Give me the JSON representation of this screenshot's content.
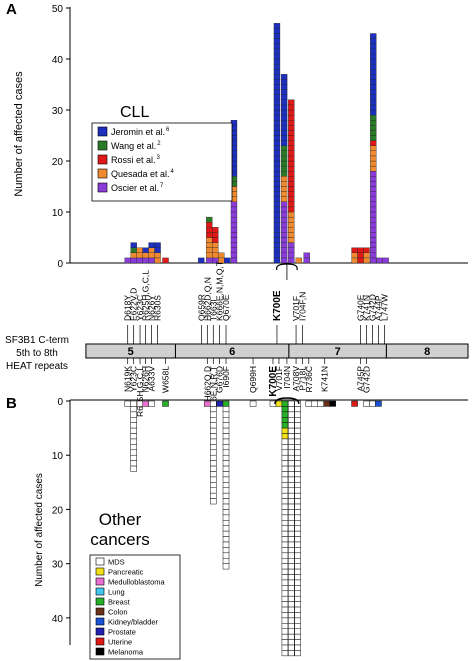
{
  "panel_a": {
    "letter": "A",
    "ylabel": "Number of affected cases",
    "yticks": [
      "0",
      "10",
      "20",
      "30",
      "40",
      "50"
    ],
    "group_label": "CLL",
    "legend": [
      {
        "name": "Jeromin et al.",
        "sup": "6",
        "color": "#1c2fbf"
      },
      {
        "name": "Wang et al.",
        "sup": "2",
        "color": "#2a7a2a"
      },
      {
        "name": "Rossi et al.",
        "sup": "3",
        "color": "#e01818"
      },
      {
        "name": "Quesada et al.",
        "sup": "4",
        "color": "#f08a30"
      },
      {
        "name": "Oscier et al.",
        "sup": "7",
        "color": "#8a3cd8"
      }
    ]
  },
  "protein": {
    "title_line1": "SF3B1 C-term",
    "title_line2": "5th to 8th",
    "title_line3": "HEAT repeats",
    "repeats": [
      "5",
      "6",
      "7",
      "8"
    ],
    "mutations_above": [
      "D618Y",
      "E622V,D",
      "Y623C",
      "R625H,G,C,L",
      "N626Y",
      "R630S",
      "Q659R",
      "H662D,Q,N",
      "T663I",
      "K666E,N,M,Q,T",
      "Q670E",
      "K700E",
      "V701F",
      "I704F,N",
      "G740E",
      "K741N",
      "G742D",
      "A744P",
      "L747W"
    ],
    "mutations_below": [
      "N619K",
      "Y623C",
      "R625H,G,C,L",
      "N626H",
      "A633V",
      "W658L",
      "H662Q,D",
      "K666E,N,R,T",
      "G676D",
      "I690F",
      "Q699H",
      "K700E",
      "V701F",
      "I704N",
      "A708V",
      "P718L",
      "R736C",
      "K741N",
      "A745P",
      "G742D"
    ]
  },
  "panel_b": {
    "letter": "B",
    "ylabel": "Number of affected cases",
    "yticks": [
      "0",
      "10",
      "20",
      "30",
      "40"
    ],
    "group_label_line1": "Other",
    "group_label_line2": "cancers",
    "legend": [
      {
        "name": "MDS",
        "color": "#ffffff"
      },
      {
        "name": "Pancreatic",
        "color": "#f2e018"
      },
      {
        "name": "Medulloblastoma",
        "color": "#e870d0"
      },
      {
        "name": "Lung",
        "color": "#40c8f0"
      },
      {
        "name": "Breast",
        "color": "#28b028"
      },
      {
        "name": "Colon",
        "color": "#6a3018"
      },
      {
        "name": "Kidney/bladder",
        "color": "#1850d8"
      },
      {
        "name": "Prostate",
        "color": "#2020b0"
      },
      {
        "name": "Uterine",
        "color": "#e01818"
      },
      {
        "name": "Melanoma",
        "color": "#000000"
      }
    ]
  },
  "chart_data": [
    {
      "type": "bar",
      "stacked": true,
      "panel": "A",
      "title": "CLL",
      "xlabel": "",
      "ylabel": "Number of affected cases",
      "ylim": [
        0,
        50
      ],
      "series_order": [
        "Oscier et al.",
        "Quesada et al.",
        "Rossi et al.",
        "Wang et al.",
        "Jeromin et al."
      ],
      "bars": [
        {
          "pos": 0.145,
          "values": {
            "Oscier et al.": 1
          }
        },
        {
          "pos": 0.16,
          "values": {
            "Oscier et al.": 1,
            "Quesada et al.": 1,
            "Wang et al.": 1,
            "Jeromin et al.": 1
          }
        },
        {
          "pos": 0.175,
          "values": {
            "Oscier et al.": 1,
            "Quesada et al.": 2
          }
        },
        {
          "pos": 0.19,
          "values": {
            "Oscier et al.": 1,
            "Quesada et al.": 1,
            "Jeromin et al.": 1
          }
        },
        {
          "pos": 0.205,
          "values": {
            "Oscier et al.": 1,
            "Quesada et al.": 2,
            "Jeromin et al.": 1
          }
        },
        {
          "pos": 0.22,
          "values": {
            "Quesada et al.": 2,
            "Jeromin et al.": 2
          }
        },
        {
          "pos": 0.24,
          "values": {
            "Rossi et al.": 1
          }
        },
        {
          "pos": 0.33,
          "values": {
            "Jeromin et al.": 1
          }
        },
        {
          "pos": 0.35,
          "values": {
            "Oscier et al.": 1,
            "Quesada et al.": 4,
            "Wang et al.": 1,
            "Rossi et al.": 3
          }
        },
        {
          "pos": 0.365,
          "values": {
            "Oscier et al.": 1,
            "Quesada et al.": 3,
            "Rossi et al.": 3
          }
        },
        {
          "pos": 0.38,
          "values": {
            "Quesada et al.": 2
          }
        },
        {
          "pos": 0.395,
          "values": {
            "Jeromin et al.": 1
          }
        },
        {
          "pos": 0.412,
          "values": {
            "Oscier et al.": 12,
            "Quesada et al.": 3,
            "Wang et al.": 2,
            "Jeromin et al.": 11
          }
        },
        {
          "pos": 0.52,
          "values": {
            "Jeromin et al.": 47
          }
        },
        {
          "pos": 0.538,
          "values": {
            "Oscier et al.": 12,
            "Quesada et al.": 5,
            "Wang et al.": 6,
            "Jeromin et al.": 14
          }
        },
        {
          "pos": 0.556,
          "values": {
            "Oscier et al.": 4,
            "Quesada et al.": 6,
            "Rossi et al.": 22
          }
        },
        {
          "pos": 0.575,
          "values": {
            "Quesada et al.": 1
          }
        },
        {
          "pos": 0.595,
          "values": {
            "Oscier et al.": 2
          }
        },
        {
          "pos": 0.715,
          "values": {
            "Quesada et al.": 2,
            "Rossi et al.": 1
          }
        },
        {
          "pos": 0.73,
          "values": {
            "Rossi et al.": 3
          }
        },
        {
          "pos": 0.745,
          "values": {
            "Quesada et al.": 2,
            "Rossi et al.": 1
          }
        },
        {
          "pos": 0.762,
          "values": {
            "Oscier et al.": 18,
            "Quesada et al.": 5,
            "Wang et al.": 5,
            "Rossi et al.": 1,
            "Jeromin et al.": 16
          }
        },
        {
          "pos": 0.778,
          "values": {
            "Oscier et al.": 1
          }
        },
        {
          "pos": 0.793,
          "values": {
            "Oscier et al.": 1
          }
        }
      ]
    },
    {
      "type": "bar",
      "stacked": true,
      "orientation": "downward",
      "panel": "B",
      "title": "Other cancers",
      "xlabel": "",
      "ylabel": "Number of affected cases",
      "ylim": [
        0,
        45
      ],
      "columns": [
        {
          "pos": 0.145,
          "cells": [
            "MDS"
          ]
        },
        {
          "pos": 0.16,
          "cells": [
            "MDS",
            "MDS",
            "MDS",
            "MDS",
            "MDS",
            "MDS",
            "MDS",
            "MDS",
            "MDS",
            "MDS",
            "MDS",
            "MDS",
            "MDS"
          ]
        },
        {
          "pos": 0.176,
          "cells": [
            "MDS"
          ]
        },
        {
          "pos": 0.19,
          "cells": [
            "Medulloblastoma"
          ]
        },
        {
          "pos": 0.205,
          "cells": [
            "MDS"
          ]
        },
        {
          "pos": 0.24,
          "cells": [
            "Breast"
          ]
        },
        {
          "pos": 0.345,
          "cells": [
            "Medulloblastoma"
          ]
        },
        {
          "pos": 0.36,
          "cells": [
            "MDS",
            "MDS",
            "MDS",
            "MDS",
            "MDS",
            "MDS",
            "MDS",
            "MDS",
            "MDS",
            "MDS",
            "MDS",
            "MDS",
            "MDS",
            "MDS",
            "MDS",
            "MDS",
            "MDS",
            "MDS",
            "MDS"
          ]
        },
        {
          "pos": 0.376,
          "cells": [
            "Prostate"
          ]
        },
        {
          "pos": 0.392,
          "cells": [
            "Breast",
            "MDS",
            "MDS",
            "MDS",
            "MDS",
            "MDS",
            "MDS",
            "MDS",
            "MDS",
            "MDS",
            "MDS",
            "MDS",
            "MDS",
            "MDS",
            "MDS",
            "MDS",
            "MDS",
            "MDS",
            "MDS",
            "MDS",
            "MDS",
            "MDS",
            "MDS",
            "MDS",
            "MDS",
            "MDS",
            "MDS",
            "MDS",
            "MDS",
            "MDS",
            "MDS"
          ]
        },
        {
          "pos": 0.46,
          "cells": [
            "MDS"
          ]
        },
        {
          "pos": 0.51,
          "cells": [
            "MDS"
          ]
        },
        {
          "pos": 0.525,
          "cells": [
            "Pancreatic"
          ]
        },
        {
          "pos": 0.54,
          "cells": [
            "Breast",
            "Breast",
            "Breast",
            "Breast",
            "Breast",
            "Pancreatic",
            "Pancreatic",
            "MDS",
            "MDS",
            "MDS",
            "MDS",
            "MDS",
            "MDS",
            "MDS",
            "MDS",
            "MDS",
            "MDS",
            "MDS",
            "MDS",
            "MDS",
            "MDS",
            "MDS",
            "MDS",
            "MDS",
            "MDS",
            "MDS",
            "MDS",
            "MDS",
            "MDS",
            "MDS",
            "MDS",
            "MDS",
            "MDS",
            "MDS",
            "MDS",
            "MDS",
            "MDS",
            "MDS",
            "MDS",
            "MDS",
            "MDS",
            "MDS",
            "MDS",
            "MDS",
            "MDS",
            "MDS",
            "MDS"
          ]
        },
        {
          "pos": 0.556,
          "cells": [
            "MDS",
            "MDS",
            "MDS",
            "MDS",
            "MDS",
            "MDS",
            "MDS",
            "MDS",
            "MDS",
            "MDS",
            "MDS",
            "MDS",
            "MDS",
            "MDS",
            "MDS",
            "MDS",
            "MDS",
            "MDS",
            "MDS",
            "MDS",
            "MDS",
            "MDS",
            "MDS",
            "MDS",
            "MDS",
            "MDS",
            "MDS",
            "MDS",
            "MDS",
            "MDS",
            "MDS",
            "MDS",
            "MDS",
            "MDS",
            "MDS",
            "MDS",
            "MDS",
            "MDS",
            "MDS",
            "MDS",
            "MDS",
            "MDS",
            "MDS",
            "MDS",
            "MDS",
            "MDS",
            "MDS"
          ]
        },
        {
          "pos": 0.572,
          "cells": [
            "MDS",
            "MDS",
            "MDS",
            "MDS",
            "MDS",
            "MDS",
            "MDS",
            "MDS",
            "MDS",
            "MDS",
            "MDS",
            "MDS",
            "MDS",
            "MDS",
            "MDS",
            "MDS",
            "MDS",
            "MDS",
            "MDS",
            "MDS",
            "MDS",
            "MDS",
            "MDS",
            "MDS",
            "MDS",
            "MDS",
            "MDS",
            "MDS",
            "MDS",
            "MDS",
            "MDS",
            "MDS",
            "MDS",
            "MDS",
            "MDS",
            "MDS",
            "MDS",
            "MDS",
            "MDS",
            "MDS",
            "MDS",
            "MDS",
            "MDS",
            "MDS",
            "MDS",
            "MDS",
            "MDS"
          ]
        },
        {
          "pos": 0.6,
          "cells": [
            "MDS"
          ]
        },
        {
          "pos": 0.615,
          "cells": [
            "MDS"
          ]
        },
        {
          "pos": 0.63,
          "cells": [
            "MDS"
          ]
        },
        {
          "pos": 0.645,
          "cells": [
            "Colon"
          ]
        },
        {
          "pos": 0.66,
          "cells": [
            "Melanoma"
          ]
        },
        {
          "pos": 0.715,
          "cells": [
            "Uterine"
          ]
        },
        {
          "pos": 0.745,
          "cells": [
            "MDS"
          ]
        },
        {
          "pos": 0.76,
          "cells": [
            "MDS"
          ]
        },
        {
          "pos": 0.775,
          "cells": [
            "Kidney/bladder"
          ]
        }
      ]
    }
  ]
}
